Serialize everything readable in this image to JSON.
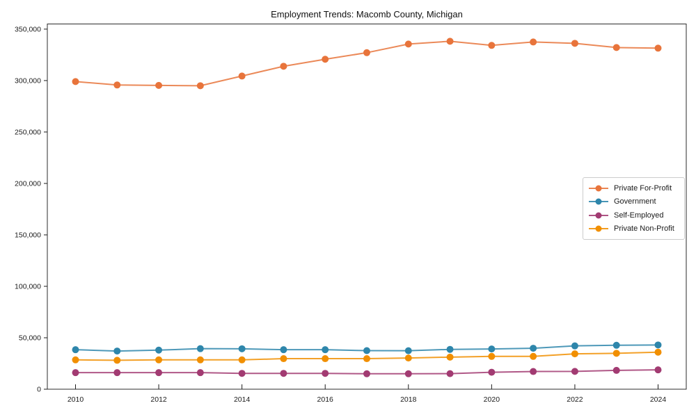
{
  "chart_data": {
    "type": "line",
    "title": "Employment Trends: Macomb County, Michigan",
    "xlabel": "",
    "ylabel": "",
    "grid": false,
    "frame_on": true,
    "background_color": "#ffffff",
    "legend_position": "center-right",
    "x": [
      2010,
      2011,
      2012,
      2013,
      2014,
      2015,
      2016,
      2017,
      2018,
      2019,
      2020,
      2021,
      2022,
      2023,
      2024
    ],
    "x_tick_years": [
      2010,
      2012,
      2014,
      2016,
      2018,
      2020,
      2022,
      2024
    ],
    "x_tick_labels": [
      "2010",
      "2012",
      "2014",
      "2016",
      "2018",
      "2020",
      "2022",
      "2024"
    ],
    "y_ticks": [
      0,
      50000,
      100000,
      150000,
      200000,
      250000,
      300000,
      350000
    ],
    "y_tick_labels": [
      "0",
      "50,000",
      "100,000",
      "150,000",
      "200,000",
      "250,000",
      "300,000",
      "350,000"
    ],
    "ylim": [
      0,
      355000
    ],
    "series": [
      {
        "name": "Private For-Profit",
        "color": "#E8743B",
        "marker": "circle",
        "values": [
          299000,
          295700,
          295300,
          295000,
          304400,
          313900,
          320700,
          327100,
          335500,
          338200,
          334200,
          337500,
          336200,
          332100,
          331500
        ]
      },
      {
        "name": "Government",
        "color": "#2E86AB",
        "marker": "circle",
        "values": [
          38400,
          37100,
          38000,
          39400,
          39300,
          38400,
          38400,
          37500,
          37400,
          38700,
          39100,
          39800,
          42100,
          42700,
          43000
        ]
      },
      {
        "name": "Self-Employed",
        "color": "#A23B72",
        "marker": "circle",
        "values": [
          16100,
          16100,
          16100,
          16100,
          15400,
          15400,
          15400,
          15000,
          15000,
          15100,
          16500,
          17200,
          17300,
          18300,
          18800
        ]
      },
      {
        "name": "Private Non-Profit",
        "color": "#F18F01",
        "marker": "circle",
        "values": [
          28500,
          28100,
          28500,
          28500,
          28500,
          29700,
          29700,
          29700,
          30300,
          31200,
          31900,
          31900,
          34400,
          34900,
          36000
        ]
      }
    ]
  }
}
